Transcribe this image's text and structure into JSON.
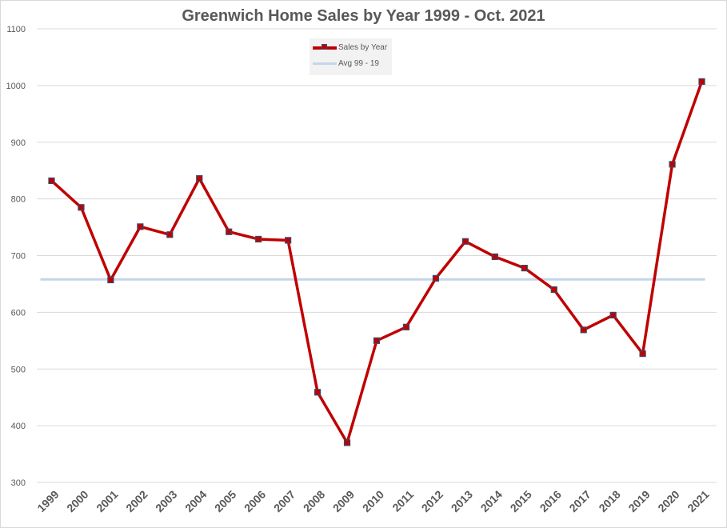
{
  "chart_data": {
    "type": "line",
    "title": "Greenwich Home Sales by Year 1999 - Oct. 2021",
    "xlabel": "",
    "ylabel": "",
    "categories": [
      "1999",
      "2000",
      "2001",
      "2002",
      "2003",
      "2004",
      "2005",
      "2006",
      "2007",
      "2008",
      "2009",
      "2010",
      "2011",
      "2012",
      "2013",
      "2014",
      "2015",
      "2016",
      "2017",
      "2018",
      "2019",
      "2020",
      "2021"
    ],
    "series": [
      {
        "name": "Sales by Year",
        "color": "#c00000",
        "marker_color": "#3b4a6b",
        "values": [
          832,
          785,
          657,
          751,
          737,
          836,
          742,
          729,
          727,
          459,
          370,
          550,
          574,
          660,
          725,
          698,
          678,
          640,
          569,
          595,
          527,
          861,
          1007
        ]
      },
      {
        "name": "Avg 99 - 19",
        "color": "#c5d5ea",
        "constant": 658
      }
    ],
    "ylim": [
      300,
      1100
    ],
    "yticks": [
      300,
      400,
      500,
      600,
      700,
      800,
      900,
      1000,
      1100
    ],
    "grid": true,
    "legend_position": "top-center"
  }
}
